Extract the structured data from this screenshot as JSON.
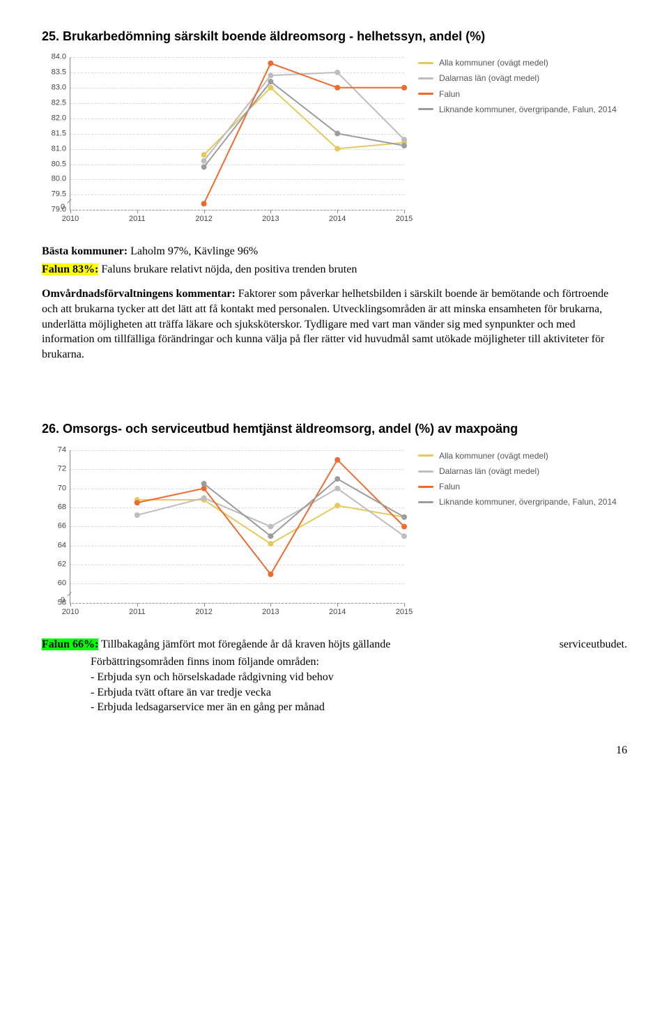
{
  "section25": {
    "title": "25. Brukarbedömning särskilt boende äldreomsorg - helhetssyn, andel (%)",
    "best_prefix": "Bästa kommuner:",
    "best_text": " Laholm 97%, Kävlinge 96%",
    "falun_label": "Falun 83%:",
    "falun_text": " Faluns brukare relativt nöjda, den positiva trenden bruten",
    "comment_label": "Omvårdnadsförvaltningens kommentar:",
    "comment_text": " Faktorer som påverkar helhetsbilden i särskilt boende är bemötande och förtroende och att brukarna tycker att det lätt att få kontakt med personalen. Utvecklingsområden är att minska ensamheten för brukarna, underlätta möjligheten att träffa läkare och sjuksköterskor. Tydligare med vart man vänder sig med synpunkter och med information om tillfälliga förändringar och kunna välja på fler rätter vid huvudmål samt utökade möjligheter till aktiviteter för brukarna."
  },
  "section26": {
    "title": "26. Omsorgs- och serviceutbud hemtjänst äldreomsorg, andel (%) av maxpoäng",
    "falun_label": "Falun 66%:",
    "line1": " Tillbakagång jämfört mot föregående år då kraven höjts gällande",
    "line1_right": "serviceutbudet.",
    "line2": "Förbättringsområden finns inom följande områden:",
    "bullets": [
      "- Erbjuda syn och hörselskadade rådgivning vid behov",
      "- Erbjuda tvätt oftare än var tredje vecka",
      "- Erbjuda ledsagarservice mer än en gång per månad"
    ]
  },
  "legend": {
    "items": [
      {
        "color": "#e6c95b",
        "label": "Alla kommuner (ovägt medel)"
      },
      {
        "color": "#bdbdbd",
        "label": "Dalarnas län (ovägt medel)"
      },
      {
        "color": "#ef6a2e",
        "label": "Falun"
      },
      {
        "color": "#9c9c9c",
        "label": "Liknande kommuner, övergripande, Falun, 2014"
      }
    ]
  },
  "chart25": {
    "background_color": "#ffffff",
    "grid_color": "#d8d8d8",
    "axis_color": "#888888",
    "x_categories": [
      "2010",
      "2011",
      "2012",
      "2013",
      "2014",
      "2015"
    ],
    "y_min": 79.0,
    "y_max": 84.0,
    "y_ticks": [
      "79.0",
      "79.5",
      "80.0",
      "80.5",
      "81.0",
      "81.5",
      "82.0",
      "82.5",
      "83.0",
      "83.5",
      "84.0"
    ],
    "zero_break": true,
    "series": [
      {
        "color": "#e6c95b",
        "x": [
          2012,
          2013,
          2014,
          2015
        ],
        "y": [
          80.8,
          83.0,
          81.0,
          81.2
        ]
      },
      {
        "color": "#bdbdbd",
        "x": [
          2012,
          2013,
          2014,
          2015
        ],
        "y": [
          80.6,
          83.4,
          83.5,
          81.3
        ]
      },
      {
        "color": "#ef6a2e",
        "x": [
          2012,
          2013,
          2014,
          2015
        ],
        "y": [
          79.2,
          83.8,
          83.0,
          83.0
        ]
      },
      {
        "color": "#9c9c9c",
        "x": [
          2012,
          2013,
          2014,
          2015
        ],
        "y": [
          80.4,
          83.2,
          81.5,
          81.1
        ]
      }
    ]
  },
  "chart26": {
    "background_color": "#ffffff",
    "grid_color": "#d8d8d8",
    "axis_color": "#888888",
    "x_categories": [
      "2010",
      "2011",
      "2012",
      "2013",
      "2014",
      "2015"
    ],
    "y_min": 58,
    "y_max": 74,
    "y_ticks": [
      "58",
      "60",
      "62",
      "64",
      "66",
      "68",
      "70",
      "72",
      "74"
    ],
    "zero_break": true,
    "series": [
      {
        "color": "#e6c95b",
        "x": [
          2011,
          2012,
          2013,
          2014,
          2015
        ],
        "y": [
          68.8,
          68.8,
          64.2,
          68.2,
          67.0
        ]
      },
      {
        "color": "#bdbdbd",
        "x": [
          2011,
          2012,
          2013,
          2014,
          2015
        ],
        "y": [
          67.2,
          69.0,
          66.0,
          70.0,
          65.0
        ]
      },
      {
        "color": "#ef6a2e",
        "x": [
          2011,
          2012,
          2013,
          2014,
          2015
        ],
        "y": [
          68.5,
          70.0,
          61.0,
          73.0,
          66.0
        ]
      },
      {
        "color": "#9c9c9c",
        "x": [
          2012,
          2013,
          2014,
          2015
        ],
        "y": [
          70.5,
          65.0,
          71.0,
          67.0
        ]
      }
    ]
  },
  "page_number": "16"
}
